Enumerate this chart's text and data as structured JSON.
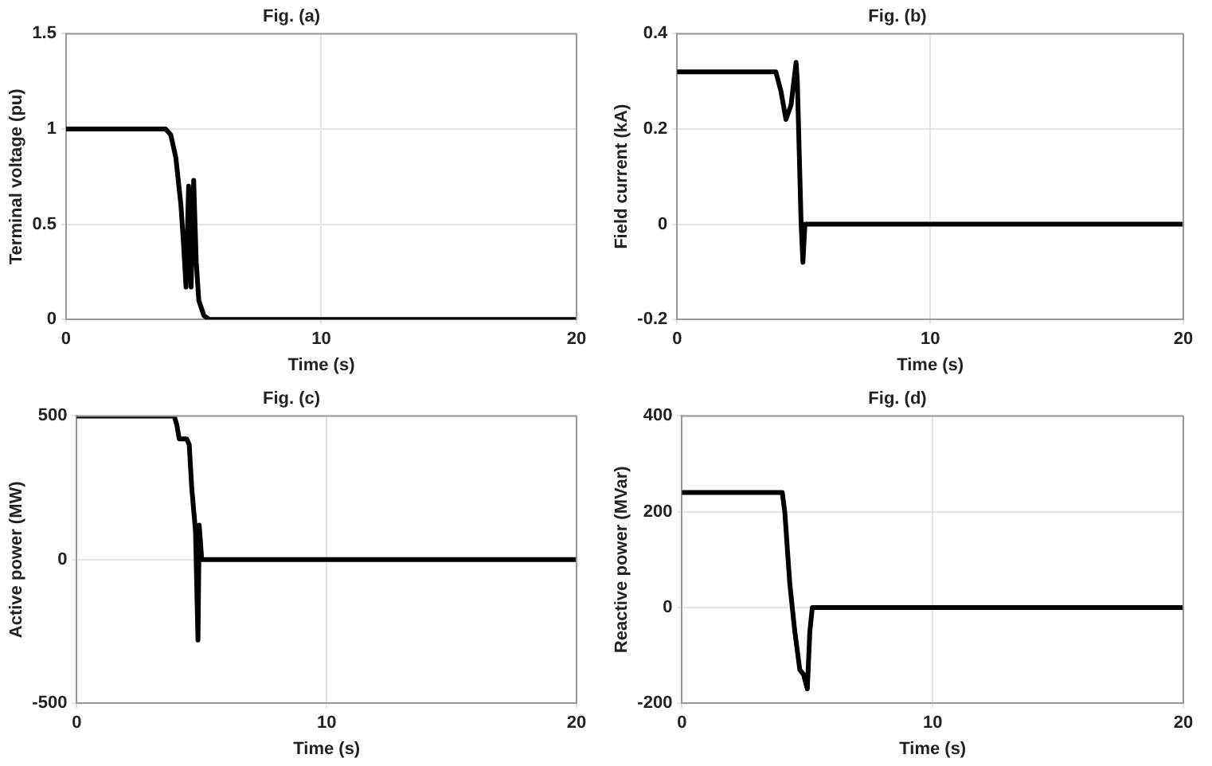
{
  "chart_data": [
    {
      "type": "line",
      "title": "Fig. (a)",
      "xlabel": "Time (s)",
      "ylabel": "Terminal voltage (pu)",
      "xlim": [
        0,
        20
      ],
      "xticks": [
        0,
        10,
        20
      ],
      "ylim": [
        0,
        1.5
      ],
      "yticks": [
        0,
        0.5,
        1,
        1.5
      ],
      "grid": true,
      "marker": "none",
      "series": [
        {
          "color": "#000000",
          "x": [
            0,
            3.9,
            4.1,
            4.3,
            4.5,
            4.6,
            4.7,
            4.8,
            4.9,
            5.0,
            5.1,
            5.2,
            5.4,
            5.6,
            20
          ],
          "values": [
            1,
            1,
            0.97,
            0.85,
            0.6,
            0.4,
            0.17,
            0.7,
            0.17,
            0.73,
            0.3,
            0.1,
            0.02,
            0,
            0
          ]
        }
      ]
    },
    {
      "type": "line",
      "title": "Fig. (b)",
      "xlabel": "Time (s)",
      "ylabel": "Field current (kA)",
      "xlim": [
        0,
        20
      ],
      "xticks": [
        0,
        10,
        20
      ],
      "ylim": [
        -0.2,
        0.4
      ],
      "yticks": [
        -0.2,
        0,
        0.2,
        0.4
      ],
      "grid": true,
      "marker": "none",
      "series": [
        {
          "color": "#000000",
          "x": [
            0,
            3.9,
            4.1,
            4.3,
            4.5,
            4.7,
            4.75,
            4.9,
            4.97,
            5.05,
            20
          ],
          "values": [
            0.32,
            0.32,
            0.28,
            0.22,
            0.25,
            0.34,
            0.3,
            0,
            -0.08,
            0,
            0
          ]
        }
      ]
    },
    {
      "type": "line",
      "title": "Fig. (c)",
      "xlabel": "Time (s)",
      "ylabel": "Active power (MW)",
      "xlim": [
        0,
        20
      ],
      "xticks": [
        0,
        10,
        20
      ],
      "ylim": [
        -500,
        500
      ],
      "yticks": [
        -500,
        0,
        500
      ],
      "grid": true,
      "marker": "none",
      "series": [
        {
          "color": "#000000",
          "x": [
            0,
            3.9,
            4.0,
            4.1,
            4.4,
            4.5,
            4.6,
            4.75,
            4.85,
            4.9,
            5.0,
            20
          ],
          "values": [
            500,
            500,
            470,
            420,
            420,
            400,
            250,
            100,
            -280,
            120,
            0,
            0
          ]
        }
      ]
    },
    {
      "type": "line",
      "title": "Fig. (d)",
      "xlabel": "Time (s)",
      "ylabel": "Reactive power (MVar)",
      "xlim": [
        0,
        20
      ],
      "xticks": [
        0,
        10,
        20
      ],
      "ylim": [
        -200,
        400
      ],
      "yticks": [
        -200,
        0,
        200,
        400
      ],
      "grid": true,
      "marker": "none",
      "series": [
        {
          "color": "#000000",
          "x": [
            0,
            4.0,
            4.1,
            4.3,
            4.5,
            4.7,
            4.85,
            5.0,
            5.1,
            5.2,
            20
          ],
          "values": [
            240,
            240,
            200,
            50,
            -50,
            -130,
            -140,
            -170,
            -50,
            0,
            0
          ]
        }
      ]
    }
  ]
}
